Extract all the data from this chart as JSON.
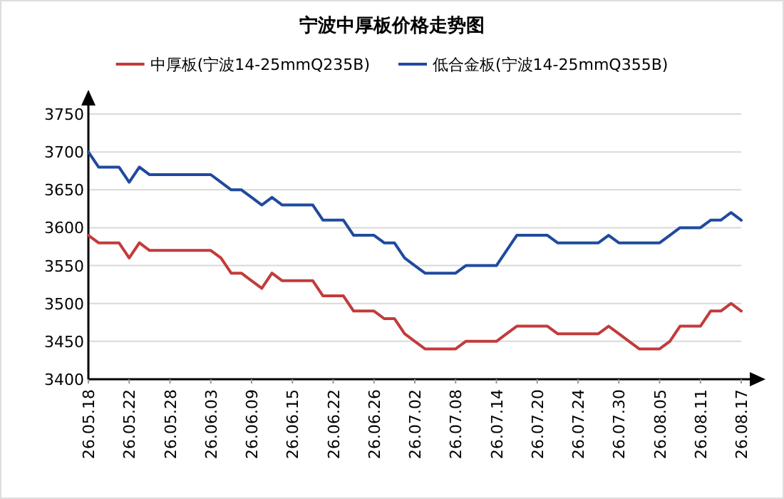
{
  "chart_data": {
    "type": "line",
    "title": "宁波中厚板价格走势图",
    "categories": [
      "26.05.18",
      null,
      null,
      null,
      "26.05.22",
      null,
      null,
      null,
      "26.05.28",
      null,
      null,
      null,
      "26.06.03",
      null,
      null,
      null,
      "26.06.09",
      null,
      null,
      null,
      "26.06.15",
      null,
      null,
      null,
      "26.06.22",
      null,
      null,
      null,
      "26.06.26",
      null,
      null,
      null,
      "26.07.02",
      null,
      null,
      null,
      "26.07.08",
      null,
      null,
      null,
      "26.07.14",
      null,
      null,
      null,
      "26.07.20",
      null,
      null,
      null,
      "26.07.24",
      null,
      null,
      null,
      "26.07.30",
      null,
      null,
      null,
      "26.08.05",
      null,
      null,
      null,
      "26.08.11",
      null,
      null,
      null,
      "26.08.17"
    ],
    "series": [
      {
        "name": "中厚板(宁波14-25mmQ235B)",
        "color": "#c23b3b",
        "values": [
          3590,
          3580,
          3580,
          3580,
          3560,
          3580,
          3570,
          3570,
          3570,
          3570,
          3570,
          3570,
          3570,
          3560,
          3540,
          3540,
          3530,
          3520,
          3540,
          3530,
          3530,
          3530,
          3530,
          3510,
          3510,
          3510,
          3490,
          3490,
          3490,
          3480,
          3480,
          3460,
          3450,
          3440,
          3440,
          3440,
          3440,
          3450,
          3450,
          3450,
          3450,
          3460,
          3470,
          3470,
          3470,
          3470,
          3460,
          3460,
          3460,
          3460,
          3460,
          3470,
          3460,
          3450,
          3440,
          3440,
          3440,
          3450,
          3470,
          3470,
          3470,
          3490,
          3490,
          3500,
          3490
        ]
      },
      {
        "name": "低合金板(宁波14-25mmQ355B)",
        "color": "#1f4a9e",
        "values": [
          3700,
          3680,
          3680,
          3680,
          3660,
          3680,
          3670,
          3670,
          3670,
          3670,
          3670,
          3670,
          3670,
          3660,
          3650,
          3650,
          3640,
          3630,
          3640,
          3630,
          3630,
          3630,
          3630,
          3610,
          3610,
          3610,
          3590,
          3590,
          3590,
          3580,
          3580,
          3560,
          3550,
          3540,
          3540,
          3540,
          3540,
          3550,
          3550,
          3550,
          3550,
          3570,
          3590,
          3590,
          3590,
          3590,
          3580,
          3580,
          3580,
          3580,
          3580,
          3590,
          3580,
          3580,
          3580,
          3580,
          3580,
          3590,
          3600,
          3600,
          3600,
          3610,
          3610,
          3620,
          3610
        ]
      }
    ],
    "ylim": [
      3400,
      3750
    ],
    "yticks": [
      3400,
      3450,
      3500,
      3550,
      3600,
      3650,
      3700,
      3750
    ],
    "grid": "y",
    "legend": "top"
  }
}
